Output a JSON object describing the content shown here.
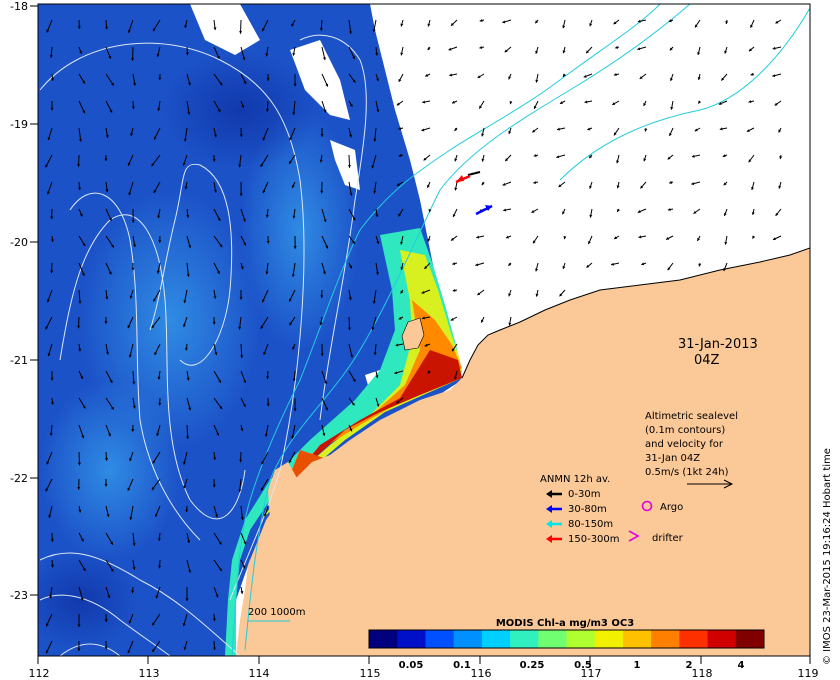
{
  "map": {
    "lon_ticks": [
      "112",
      "113",
      "114",
      "115",
      "116",
      "117",
      "118",
      "119"
    ],
    "lat_ticks": [
      "-18",
      "-19",
      "-20",
      "-21",
      "-22",
      "-23"
    ],
    "date": "31-Jan-2013",
    "time": "04Z",
    "credit": "© IMOS 23-Mar-2015 19:16:24 Hobart time",
    "scale_text": "200  1000m"
  },
  "altimetry_note": {
    "line1": "Altimetric sealevel",
    "line2": "(0.1m contours)",
    "line3": "and velocity for",
    "line4": "31-Jan 04Z",
    "line5": "0.5m/s (1kt 24h)"
  },
  "legend": {
    "title": "ANMN 12h av.",
    "items": [
      {
        "label": "0-30m",
        "color": "#000000"
      },
      {
        "label": "30-80m",
        "color": "#0000ff"
      },
      {
        "label": "80-150m",
        "color": "#00e5e5"
      },
      {
        "label": "150-300m",
        "color": "#ff0000"
      }
    ],
    "argo_label": "Argo",
    "argo_color": "#e000e0",
    "drifter_label": "drifter",
    "drifter_color": "#e000e0"
  },
  "colorbar": {
    "title": "MODIS Chl-a mg/m3 OC3",
    "ticks": [
      "0.05",
      "0.1",
      "0.25",
      "0.5",
      "1",
      "2",
      "4"
    ],
    "colors": [
      "#00007f",
      "#0010c8",
      "#0050ff",
      "#0090ff",
      "#00d0ff",
      "#30f0c0",
      "#70ff70",
      "#b0ff30",
      "#f0f000",
      "#ffc000",
      "#ff8000",
      "#ff3000",
      "#d00000",
      "#800000"
    ]
  },
  "colors": {
    "ocean": "#1c52c8",
    "land": "#fbc898",
    "contour": "#dce8f0",
    "isobath": "#22ccdd"
  }
}
